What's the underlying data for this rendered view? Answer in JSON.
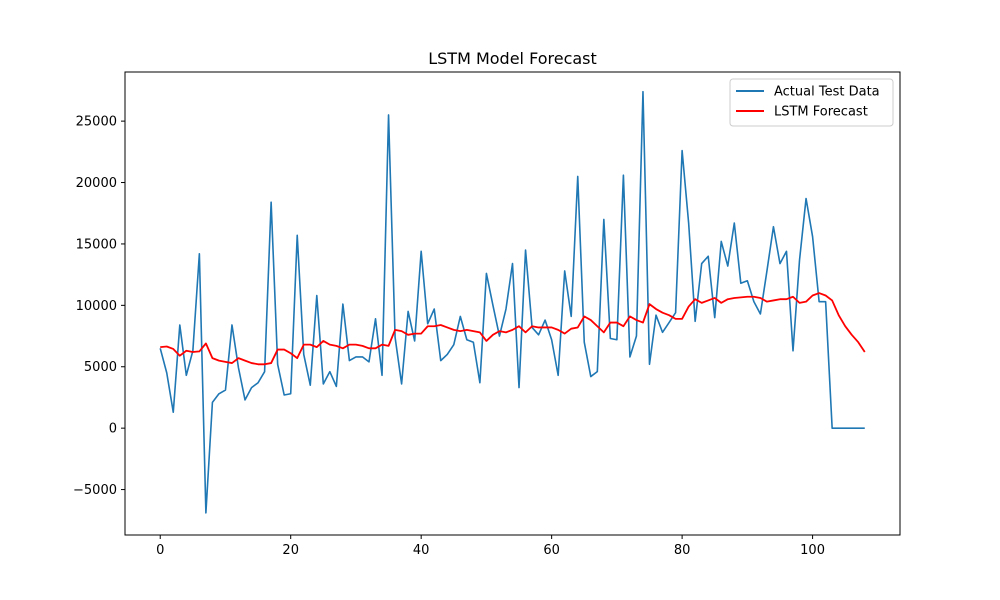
{
  "chart_data": {
    "type": "line",
    "title": "LSTM Model Forecast",
    "xlabel": "",
    "ylabel": "",
    "xlim": [
      -5.4,
      113.4
    ],
    "ylim": [
      -8700,
      29000
    ],
    "xticks": [
      0,
      20,
      40,
      60,
      80,
      100
    ],
    "yticks": [
      -5000,
      0,
      5000,
      10000,
      15000,
      20000,
      25000
    ],
    "grid": false,
    "legend_position": "top-right",
    "series": [
      {
        "name": "Actual Test Data",
        "color": "#1f77b4",
        "x": [
          0,
          1,
          2,
          3,
          4,
          5,
          6,
          7,
          8,
          9,
          10,
          11,
          12,
          13,
          14,
          15,
          16,
          17,
          18,
          19,
          20,
          21,
          22,
          23,
          24,
          25,
          26,
          27,
          28,
          29,
          30,
          31,
          32,
          33,
          34,
          35,
          36,
          37,
          38,
          39,
          40,
          41,
          42,
          43,
          44,
          45,
          46,
          47,
          48,
          49,
          50,
          51,
          52,
          53,
          54,
          55,
          56,
          57,
          58,
          59,
          60,
          61,
          62,
          63,
          64,
          65,
          66,
          67,
          68,
          69,
          70,
          71,
          72,
          73,
          74,
          75,
          76,
          77,
          78,
          79,
          80,
          81,
          82,
          83,
          84,
          85,
          86,
          87,
          88,
          89,
          90,
          91,
          92,
          93,
          94,
          95,
          96,
          97,
          98,
          99,
          100,
          101,
          102,
          103,
          104,
          105,
          106,
          107,
          108
        ],
        "values": [
          6500,
          4500,
          1300,
          8400,
          4300,
          6300,
          14200,
          -6900,
          2100,
          2800,
          3100,
          8400,
          4900,
          2300,
          3300,
          3700,
          4600,
          18400,
          5200,
          2700,
          2800,
          15700,
          6000,
          3500,
          10800,
          3600,
          4600,
          3400,
          10100,
          5500,
          5800,
          5800,
          5400,
          8900,
          4300,
          25500,
          7400,
          3600,
          9500,
          7100,
          14400,
          8500,
          9700,
          5500,
          6000,
          6800,
          9100,
          7200,
          7000,
          3700,
          12600,
          10000,
          7500,
          9700,
          13400,
          3300,
          14500,
          8200,
          7600,
          8800,
          7200,
          4300,
          12800,
          9100,
          20500,
          7000,
          4200,
          4600,
          17000,
          7300,
          7200,
          20600,
          5800,
          7500,
          27400,
          5200,
          9200,
          7800,
          8600,
          9400,
          22600,
          16700,
          8700,
          13400,
          14000,
          9000,
          15200,
          13200,
          16700,
          11800,
          12000,
          10300,
          9300,
          12800,
          16400,
          13400,
          14400,
          6300,
          13700,
          18700,
          15600,
          10300,
          10300,
          0,
          0,
          0,
          0,
          0,
          0
        ]
      },
      {
        "name": "LSTM Forecast",
        "color": "#ff0000",
        "x": [
          0,
          1,
          2,
          3,
          4,
          5,
          6,
          7,
          8,
          9,
          10,
          11,
          12,
          13,
          14,
          15,
          16,
          17,
          18,
          19,
          20,
          21,
          22,
          23,
          24,
          25,
          26,
          27,
          28,
          29,
          30,
          31,
          32,
          33,
          34,
          35,
          36,
          37,
          38,
          39,
          40,
          41,
          42,
          43,
          44,
          45,
          46,
          47,
          48,
          49,
          50,
          51,
          52,
          53,
          54,
          55,
          56,
          57,
          58,
          59,
          60,
          61,
          62,
          63,
          64,
          65,
          66,
          67,
          68,
          69,
          70,
          71,
          72,
          73,
          74,
          75,
          76,
          77,
          78,
          79,
          80,
          81,
          82,
          83,
          84,
          85,
          86,
          87,
          88,
          89,
          90,
          91,
          92,
          93,
          94,
          95,
          96,
          97,
          98,
          99,
          100,
          101,
          102,
          103,
          104,
          105,
          106,
          107,
          108
        ],
        "values": [
          6600,
          6650,
          6450,
          5900,
          6300,
          6200,
          6250,
          6900,
          5700,
          5500,
          5400,
          5300,
          5700,
          5500,
          5300,
          5200,
          5200,
          5300,
          6400,
          6400,
          6100,
          5700,
          6800,
          6800,
          6600,
          7100,
          6800,
          6700,
          6500,
          6800,
          6800,
          6700,
          6500,
          6500,
          6800,
          6700,
          8000,
          7900,
          7600,
          7700,
          7700,
          8300,
          8300,
          8400,
          8200,
          8000,
          7900,
          8000,
          7900,
          7800,
          7100,
          7600,
          7900,
          7800,
          8000,
          8300,
          7800,
          8300,
          8200,
          8200,
          8200,
          8000,
          7700,
          8100,
          8200,
          9100,
          8800,
          8300,
          7800,
          8600,
          8600,
          8300,
          9100,
          8800,
          8600,
          10100,
          9700,
          9400,
          9200,
          8900,
          8900,
          9900,
          10500,
          10200,
          10400,
          10600,
          10200,
          10500,
          10600,
          10650,
          10700,
          10700,
          10600,
          10300,
          10400,
          10500,
          10500,
          10700,
          10200,
          10300,
          10800,
          11000,
          10800,
          10400,
          9200,
          8300,
          7600,
          7000,
          6200
        ]
      }
    ]
  }
}
